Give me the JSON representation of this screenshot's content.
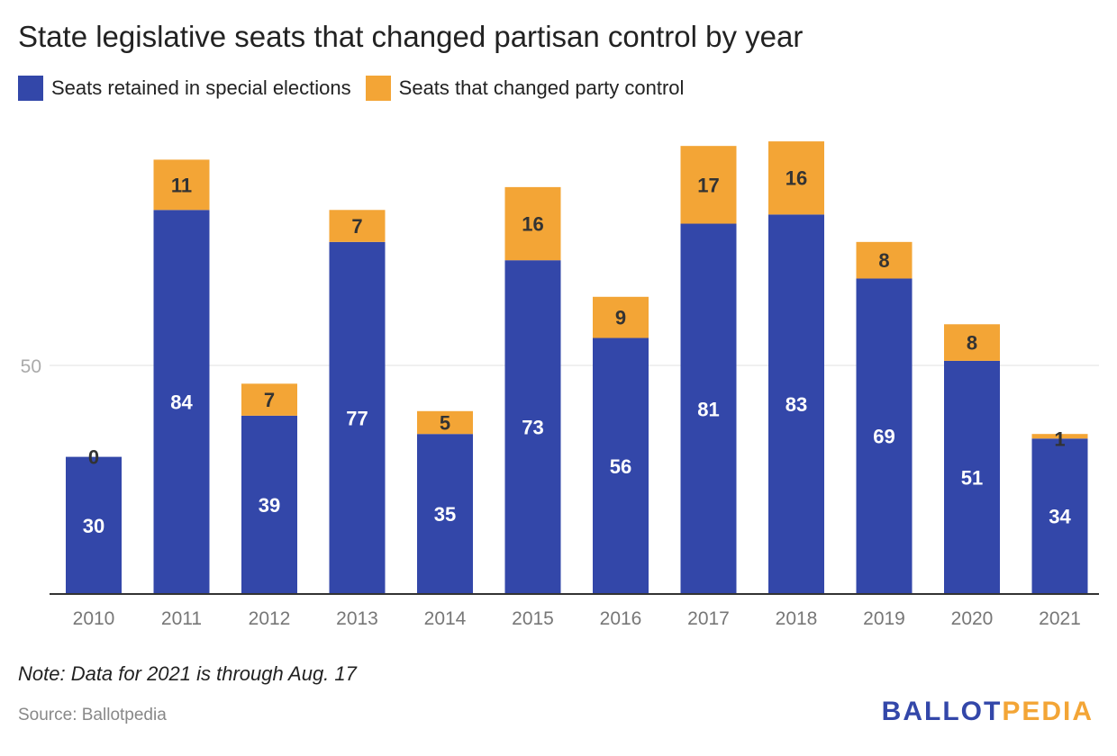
{
  "chart_data": {
    "type": "bar",
    "stacked": true,
    "title": "State legislative seats that changed partisan control by year",
    "categories": [
      "2010",
      "2011",
      "2012",
      "2013",
      "2014",
      "2015",
      "2016",
      "2017",
      "2018",
      "2019",
      "2020",
      "2021"
    ],
    "series": [
      {
        "name": "Seats retained in special elections",
        "color": "#3347a9",
        "values": [
          30,
          84,
          39,
          77,
          35,
          73,
          56,
          81,
          83,
          69,
          51,
          34
        ]
      },
      {
        "name": "Seats that changed party control",
        "color": "#f3a536",
        "values": [
          0,
          11,
          7,
          7,
          5,
          16,
          9,
          17,
          16,
          8,
          8,
          1
        ]
      }
    ],
    "yticks": [
      50
    ],
    "ylim": [
      0,
      100
    ],
    "grid": true,
    "legend": "top-left"
  },
  "note": "Note: Data for 2021 is through Aug. 17",
  "source": "Source: Ballotpedia",
  "logo": {
    "part1": "BALLOT",
    "part2": "PEDIA",
    "color1": "#3347a9",
    "color2": "#f3a536"
  }
}
